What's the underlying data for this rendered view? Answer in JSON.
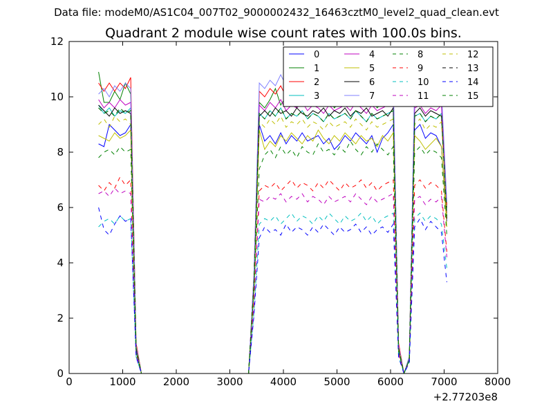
{
  "suptitle": "Data file: modeM0/AS1C04_007T02_9000002432_16463cztM0_level2_quad_clean.evt",
  "chart_data": {
    "type": "line",
    "title": "Quadrant 2 module wise count rates with 100.0s bins.",
    "xlabel": "",
    "ylabel": "",
    "x_offset_label": "+2.77203e8",
    "xlim": [
      0,
      8000
    ],
    "ylim": [
      0,
      12
    ],
    "x_ticks": [
      0,
      1000,
      2000,
      3000,
      4000,
      5000,
      6000,
      7000,
      8000
    ],
    "y_ticks": [
      0,
      2,
      4,
      6,
      8,
      10,
      12
    ],
    "grid": false,
    "legend_position": "top-right",
    "x": [
      550,
      650,
      750,
      850,
      950,
      1050,
      1150,
      1250,
      1350,
      1450,
      1550,
      1650,
      1750,
      1850,
      1950,
      2050,
      2150,
      2250,
      2350,
      2450,
      2550,
      2650,
      2750,
      2850,
      2950,
      3050,
      3150,
      3250,
      3350,
      3450,
      3550,
      3650,
      3750,
      3850,
      3950,
      4050,
      4150,
      4250,
      4350,
      4450,
      4550,
      4650,
      4750,
      4850,
      4950,
      5050,
      5150,
      5250,
      5350,
      5450,
      5550,
      5650,
      5750,
      5850,
      5950,
      6050,
      6150,
      6250,
      6350,
      6450,
      6550,
      6650,
      6750,
      6850,
      6950,
      7050
    ],
    "series": [
      {
        "name": "0",
        "color": "#0000ff",
        "dash": "solid",
        "values": [
          8.3,
          8.2,
          9.0,
          8.8,
          8.6,
          8.7,
          9.0,
          0.8,
          0,
          0,
          0,
          0,
          0,
          0,
          0,
          0,
          0,
          0,
          0,
          0,
          0,
          0,
          0,
          0,
          0,
          0,
          0,
          0,
          0,
          3.2,
          9.0,
          8.4,
          8.6,
          8.3,
          8.7,
          8.3,
          8.6,
          8.4,
          8.7,
          8.4,
          8.5,
          8.6,
          8.3,
          8.5,
          8.1,
          8.3,
          8.6,
          8.4,
          8.7,
          8.5,
          8.3,
          8.6,
          8.0,
          8.5,
          8.7,
          9.0,
          0.8,
          0,
          0.5,
          8.8,
          9.0,
          8.5,
          8.7,
          8.6,
          8.2,
          5.5
        ]
      },
      {
        "name": "1",
        "color": "#008000",
        "dash": "solid",
        "values": [
          10.9,
          9.8,
          9.8,
          10.2,
          9.9,
          10.5,
          10.1,
          1.0,
          0,
          0,
          0,
          0,
          0,
          0,
          0,
          0,
          0,
          0,
          0,
          0,
          0,
          0,
          0,
          0,
          0,
          0,
          0,
          0,
          0,
          3.5,
          9.8,
          9.6,
          9.9,
          10.3,
          9.7,
          10.0,
          9.9,
          9.6,
          10.1,
          9.8,
          9.7,
          10.1,
          9.9,
          10.0,
          9.6,
          9.8,
          10.1,
          9.8,
          9.9,
          10.0,
          9.7,
          9.9,
          9.6,
          9.8,
          10.0,
          10.1,
          1.0,
          0,
          0.6,
          9.8,
          10.1,
          9.7,
          9.9,
          9.8,
          10.0,
          6.0
        ]
      },
      {
        "name": "2",
        "color": "#ff0000",
        "dash": "solid",
        "values": [
          10.5,
          10.2,
          10.5,
          10.2,
          10.5,
          10.3,
          10.7,
          1.1,
          0,
          0,
          0,
          0,
          0,
          0,
          0,
          0,
          0,
          0,
          0,
          0,
          0,
          0,
          0,
          0,
          0,
          0,
          0,
          0,
          0,
          3.6,
          10.2,
          10.0,
          10.3,
          10.1,
          10.4,
          10.0,
          10.2,
          10.4,
          10.1,
          10.3,
          10.0,
          10.2,
          10.4,
          10.1,
          10.3,
          10.2,
          10.0,
          10.3,
          10.1,
          10.2,
          10.4,
          10.1,
          10.2,
          10.0,
          10.3,
          10.4,
          1.1,
          0,
          0.6,
          10.2,
          10.4,
          10.1,
          10.3,
          10.2,
          10.1,
          6.1
        ]
      },
      {
        "name": "3",
        "color": "#00bfbf",
        "dash": "solid",
        "values": [
          9.7,
          9.4,
          9.6,
          9.3,
          9.5,
          9.4,
          9.6,
          0.9,
          0,
          0,
          0,
          0,
          0,
          0,
          0,
          0,
          0,
          0,
          0,
          0,
          0,
          0,
          0,
          0,
          0,
          0,
          0,
          0,
          0,
          3.3,
          9.4,
          9.2,
          9.5,
          9.3,
          9.6,
          9.2,
          9.4,
          9.3,
          9.5,
          9.2,
          9.4,
          9.3,
          9.1,
          9.4,
          9.2,
          9.3,
          9.4,
          9.2,
          9.5,
          9.3,
          9.1,
          9.4,
          9.2,
          9.3,
          9.4,
          9.5,
          0.9,
          0,
          0.5,
          9.3,
          9.4,
          9.1,
          9.3,
          9.2,
          9.4,
          5.7
        ]
      },
      {
        "name": "4",
        "color": "#bf00bf",
        "dash": "solid",
        "values": [
          9.9,
          9.6,
          9.8,
          9.6,
          9.9,
          9.7,
          9.8,
          0.9,
          0,
          0,
          0,
          0,
          0,
          0,
          0,
          0,
          0,
          0,
          0,
          0,
          0,
          0,
          0,
          0,
          0,
          0,
          0,
          0,
          0,
          3.4,
          9.7,
          9.5,
          9.8,
          9.6,
          9.9,
          9.5,
          9.7,
          9.6,
          9.8,
          9.5,
          9.7,
          9.6,
          9.4,
          9.7,
          9.5,
          9.6,
          9.7,
          9.5,
          9.8,
          9.6,
          9.4,
          9.7,
          9.5,
          9.6,
          9.7,
          9.8,
          0.9,
          0,
          0.5,
          9.6,
          9.7,
          9.4,
          9.6,
          9.5,
          9.7,
          5.8
        ]
      },
      {
        "name": "5",
        "color": "#bfbf00",
        "dash": "solid",
        "values": [
          8.6,
          8.5,
          8.4,
          8.7,
          8.5,
          8.6,
          8.8,
          0.8,
          0,
          0,
          0,
          0,
          0,
          0,
          0,
          0,
          0,
          0,
          0,
          0,
          0,
          0,
          0,
          0,
          0,
          0,
          0,
          0,
          0,
          3.0,
          8.8,
          8.1,
          8.4,
          8.2,
          8.6,
          8.4,
          8.7,
          8.5,
          8.3,
          8.6,
          8.4,
          8.8,
          8.5,
          8.3,
          8.6,
          8.4,
          8.7,
          8.5,
          8.3,
          8.6,
          8.4,
          8.5,
          8.2,
          8.6,
          8.4,
          8.7,
          0.8,
          0,
          0.5,
          8.6,
          8.4,
          8.1,
          8.3,
          8.5,
          8.2,
          5.3
        ]
      },
      {
        "name": "6",
        "color": "#000000",
        "dash": "solid",
        "values": [
          9.7,
          9.5,
          9.3,
          9.6,
          9.4,
          9.5,
          9.4,
          0.9,
          0,
          0,
          0,
          0,
          0,
          0,
          0,
          0,
          0,
          0,
          0,
          0,
          0,
          0,
          0,
          0,
          0,
          0,
          0,
          0,
          0,
          3.3,
          9.3,
          9.5,
          9.3,
          9.6,
          9.4,
          9.5,
          9.3,
          9.6,
          9.4,
          9.3,
          9.5,
          9.4,
          9.6,
          9.3,
          9.5,
          9.4,
          9.6,
          9.3,
          9.5,
          9.4,
          9.6,
          9.3,
          9.4,
          9.5,
          9.3,
          9.6,
          0.9,
          0,
          0.5,
          9.4,
          9.6,
          9.3,
          9.5,
          9.4,
          9.3,
          5.6
        ]
      },
      {
        "name": "7",
        "color": "#8080ff",
        "dash": "solid",
        "values": [
          10.1,
          10.3,
          10.0,
          10.4,
          10.2,
          10.5,
          10.3,
          1.0,
          0,
          0,
          0,
          0,
          0,
          0,
          0,
          0,
          0,
          0,
          0,
          0,
          0,
          0,
          0,
          0,
          0,
          0,
          0,
          0,
          0,
          3.6,
          10.5,
          10.3,
          10.6,
          10.4,
          10.8,
          10.4,
          10.6,
          10.5,
          10.7,
          10.3,
          10.5,
          10.6,
          10.4,
          10.7,
          10.5,
          10.4,
          10.6,
          10.5,
          10.7,
          10.4,
          10.6,
          10.5,
          10.3,
          10.6,
          10.4,
          10.7,
          1.0,
          0,
          0.6,
          10.5,
          10.8,
          10.3,
          10.6,
          10.5,
          10.2,
          6.2
        ]
      },
      {
        "name": "8",
        "color": "#008000",
        "dash": "dashed",
        "values": [
          7.8,
          8.0,
          8.1,
          7.9,
          8.2,
          8.0,
          8.1,
          0.8,
          0,
          0,
          0,
          0,
          0,
          0,
          0,
          0,
          0,
          0,
          0,
          0,
          0,
          0,
          0,
          0,
          0,
          0,
          0,
          0,
          0,
          3.0,
          7.4,
          7.9,
          8.1,
          7.8,
          8.2,
          7.9,
          8.1,
          7.8,
          8.2,
          8.0,
          7.9,
          8.3,
          8.0,
          8.1,
          7.9,
          8.2,
          8.0,
          8.4,
          8.1,
          7.9,
          8.2,
          8.0,
          8.3,
          8.1,
          7.9,
          8.2,
          0.8,
          0,
          0.5,
          8.0,
          8.2,
          7.9,
          8.1,
          8.0,
          7.8,
          5.0
        ]
      },
      {
        "name": "9",
        "color": "#ff0000",
        "dash": "dashed",
        "values": [
          6.8,
          6.6,
          6.9,
          6.7,
          7.1,
          6.8,
          7.0,
          0.7,
          0,
          0,
          0,
          0,
          0,
          0,
          0,
          0,
          0,
          0,
          0,
          0,
          0,
          0,
          0,
          0,
          0,
          0,
          0,
          0,
          0,
          2.6,
          6.6,
          6.8,
          6.7,
          6.9,
          6.6,
          6.8,
          7.0,
          6.7,
          6.9,
          6.8,
          6.6,
          6.9,
          6.7,
          7.0,
          6.8,
          6.6,
          6.9,
          6.7,
          6.8,
          7.0,
          6.7,
          6.9,
          6.6,
          6.8,
          6.9,
          7.0,
          0.7,
          0,
          0.4,
          6.8,
          7.0,
          6.7,
          6.9,
          6.8,
          6.6,
          4.4
        ]
      },
      {
        "name": "10",
        "color": "#00bfbf",
        "dash": "dashed",
        "values": [
          5.3,
          5.5,
          5.6,
          5.4,
          5.7,
          5.5,
          5.6,
          0.6,
          0,
          0,
          0,
          0,
          0,
          0,
          0,
          0,
          0,
          0,
          0,
          0,
          0,
          0,
          0,
          0,
          0,
          0,
          0,
          0,
          0,
          2.2,
          5.4,
          5.6,
          5.5,
          5.7,
          5.4,
          5.6,
          5.8,
          5.5,
          5.7,
          5.6,
          5.4,
          5.7,
          5.5,
          5.8,
          5.6,
          5.4,
          5.7,
          5.5,
          5.6,
          5.8,
          5.5,
          5.7,
          5.4,
          5.6,
          5.7,
          5.8,
          0.6,
          0,
          0.4,
          5.6,
          5.8,
          5.5,
          5.7,
          5.6,
          5.4,
          3.8
        ]
      },
      {
        "name": "11",
        "color": "#bf00bf",
        "dash": "dashed",
        "values": [
          6.5,
          6.6,
          6.4,
          6.7,
          6.5,
          6.6,
          6.5,
          0.7,
          0,
          0,
          0,
          0,
          0,
          0,
          0,
          0,
          0,
          0,
          0,
          0,
          0,
          0,
          0,
          0,
          0,
          0,
          0,
          0,
          0,
          2.5,
          6.3,
          6.2,
          6.4,
          6.3,
          6.5,
          6.2,
          6.4,
          6.3,
          6.5,
          6.2,
          6.4,
          6.3,
          6.1,
          6.4,
          6.2,
          6.3,
          6.4,
          6.2,
          6.5,
          6.3,
          6.1,
          6.4,
          6.2,
          6.3,
          6.4,
          6.5,
          0.7,
          0,
          0.4,
          6.3,
          6.4,
          6.1,
          6.3,
          6.2,
          6.4,
          4.2
        ]
      },
      {
        "name": "12",
        "color": "#bfbf00",
        "dash": "dashed",
        "values": [
          9.0,
          9.2,
          8.9,
          9.3,
          9.1,
          9.2,
          9.0,
          0.9,
          0,
          0,
          0,
          0,
          0,
          0,
          0,
          0,
          0,
          0,
          0,
          0,
          0,
          0,
          0,
          0,
          0,
          0,
          0,
          0,
          0,
          3.2,
          9.1,
          8.9,
          9.2,
          9.0,
          9.3,
          8.9,
          9.1,
          9.0,
          9.2,
          8.9,
          9.1,
          9.0,
          8.8,
          9.1,
          8.9,
          9.0,
          9.1,
          8.9,
          9.2,
          9.0,
          8.8,
          9.1,
          8.9,
          9.0,
          9.1,
          9.2,
          0.9,
          0,
          0.5,
          9.0,
          9.2,
          8.8,
          9.0,
          8.9,
          9.1,
          5.6
        ]
      },
      {
        "name": "13",
        "color": "#000000",
        "dash": "dashed",
        "values": [
          9.6,
          9.4,
          9.5,
          9.3,
          9.6,
          9.4,
          9.5,
          0.9,
          0,
          0,
          0,
          0,
          0,
          0,
          0,
          0,
          0,
          0,
          0,
          0,
          0,
          0,
          0,
          0,
          0,
          0,
          0,
          0,
          0,
          3.3,
          9.4,
          9.2,
          9.5,
          9.3,
          9.6,
          9.2,
          9.4,
          9.3,
          9.5,
          9.2,
          9.4,
          9.3,
          9.1,
          9.4,
          9.2,
          9.3,
          9.4,
          9.2,
          9.5,
          9.3,
          9.1,
          9.4,
          9.2,
          9.3,
          9.4,
          9.5,
          0.9,
          0,
          0.5,
          9.3,
          9.4,
          9.1,
          9.3,
          9.2,
          9.4,
          5.7
        ]
      },
      {
        "name": "14",
        "color": "#0000ff",
        "dash": "dashed",
        "values": [
          6.0,
          5.2,
          5.0,
          5.4,
          5.7,
          5.5,
          5.6,
          0.6,
          0,
          0,
          0,
          0,
          0,
          0,
          0,
          0,
          0,
          0,
          0,
          0,
          0,
          0,
          0,
          0,
          0,
          0,
          0,
          0,
          0,
          2.1,
          4.9,
          5.3,
          5.1,
          5.2,
          5.0,
          5.4,
          5.1,
          5.3,
          5.2,
          5.0,
          5.3,
          5.1,
          5.4,
          5.2,
          5.0,
          5.3,
          5.1,
          5.2,
          5.4,
          5.1,
          5.3,
          5.0,
          5.2,
          5.3,
          5.1,
          5.4,
          0.6,
          0,
          0.4,
          5.3,
          5.6,
          5.2,
          5.5,
          5.3,
          5.1,
          3.3
        ]
      },
      {
        "name": "15",
        "color": "#008000",
        "dash": "dashed",
        "values": [
          9.6,
          9.4,
          9.5,
          9.3,
          9.6,
          9.4,
          9.5,
          0.9,
          0,
          0,
          0,
          0,
          0,
          0,
          0,
          0,
          0,
          0,
          0,
          0,
          0,
          0,
          0,
          0,
          0,
          0,
          0,
          0,
          0,
          3.3,
          9.4,
          9.2,
          9.5,
          9.3,
          9.6,
          9.2,
          9.4,
          9.3,
          9.5,
          9.2,
          9.4,
          9.3,
          9.1,
          9.4,
          9.2,
          9.3,
          9.4,
          9.2,
          9.5,
          9.3,
          9.1,
          9.4,
          9.2,
          9.3,
          9.4,
          9.5,
          0.9,
          0,
          0.5,
          9.3,
          9.4,
          9.1,
          9.3,
          9.2,
          9.4,
          5.7
        ]
      }
    ]
  }
}
